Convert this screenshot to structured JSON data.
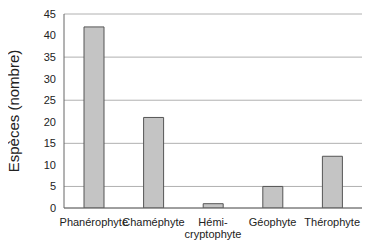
{
  "chart_data": {
    "type": "bar",
    "ylabel": "Espèces (nombre)",
    "categories": [
      "Phanérophyte",
      "Chaméphyte",
      "Hémi-cryptophyte",
      "Géophyte",
      "Thérophyte"
    ],
    "values": [
      42,
      21,
      1,
      5,
      12
    ],
    "color": "#c4c4c4",
    "ylim": [
      0,
      45
    ],
    "yticks": [
      0,
      5,
      10,
      15,
      20,
      25,
      30,
      35,
      40,
      45
    ],
    "grid": true
  }
}
